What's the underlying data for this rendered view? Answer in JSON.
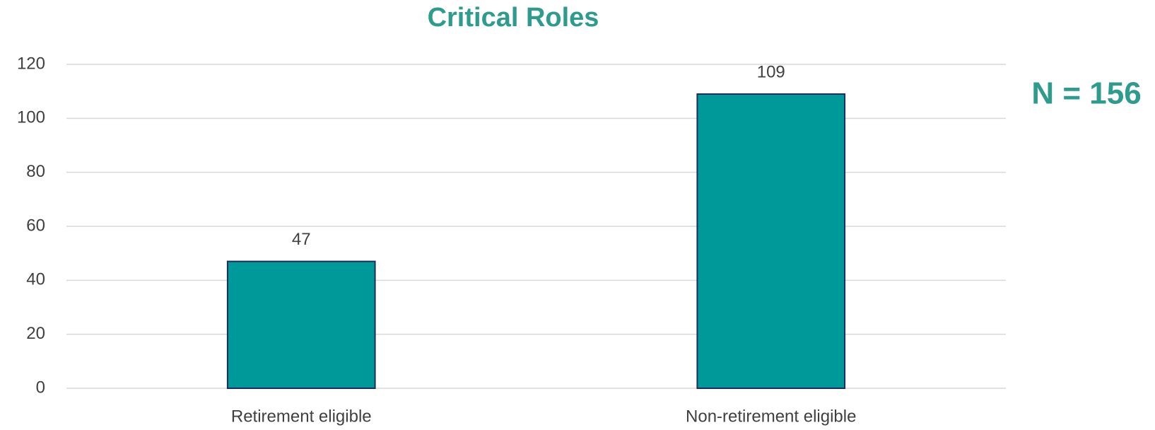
{
  "chart_data": {
    "type": "bar",
    "title": "Critical Roles",
    "annotation": "N = 156",
    "categories": [
      "Retirement eligible",
      "Non-retirement eligible"
    ],
    "values": [
      47,
      109
    ],
    "color": "#009999",
    "ylim": [
      0,
      120
    ],
    "yticks": [
      0,
      20,
      40,
      60,
      80,
      100,
      120
    ],
    "grid": true
  }
}
